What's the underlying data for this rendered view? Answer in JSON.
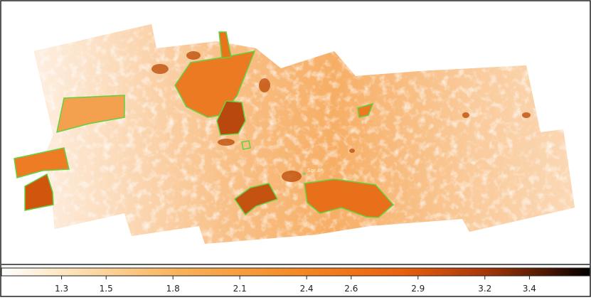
{
  "image": {
    "source_label": "Sgr A*"
  },
  "colorbar": {
    "lim": [
      1.03,
      3.67
    ],
    "ticks": [
      1.3,
      1.5,
      1.8,
      2.1,
      2.4,
      2.6,
      2.9,
      3.2,
      3.4
    ]
  }
}
